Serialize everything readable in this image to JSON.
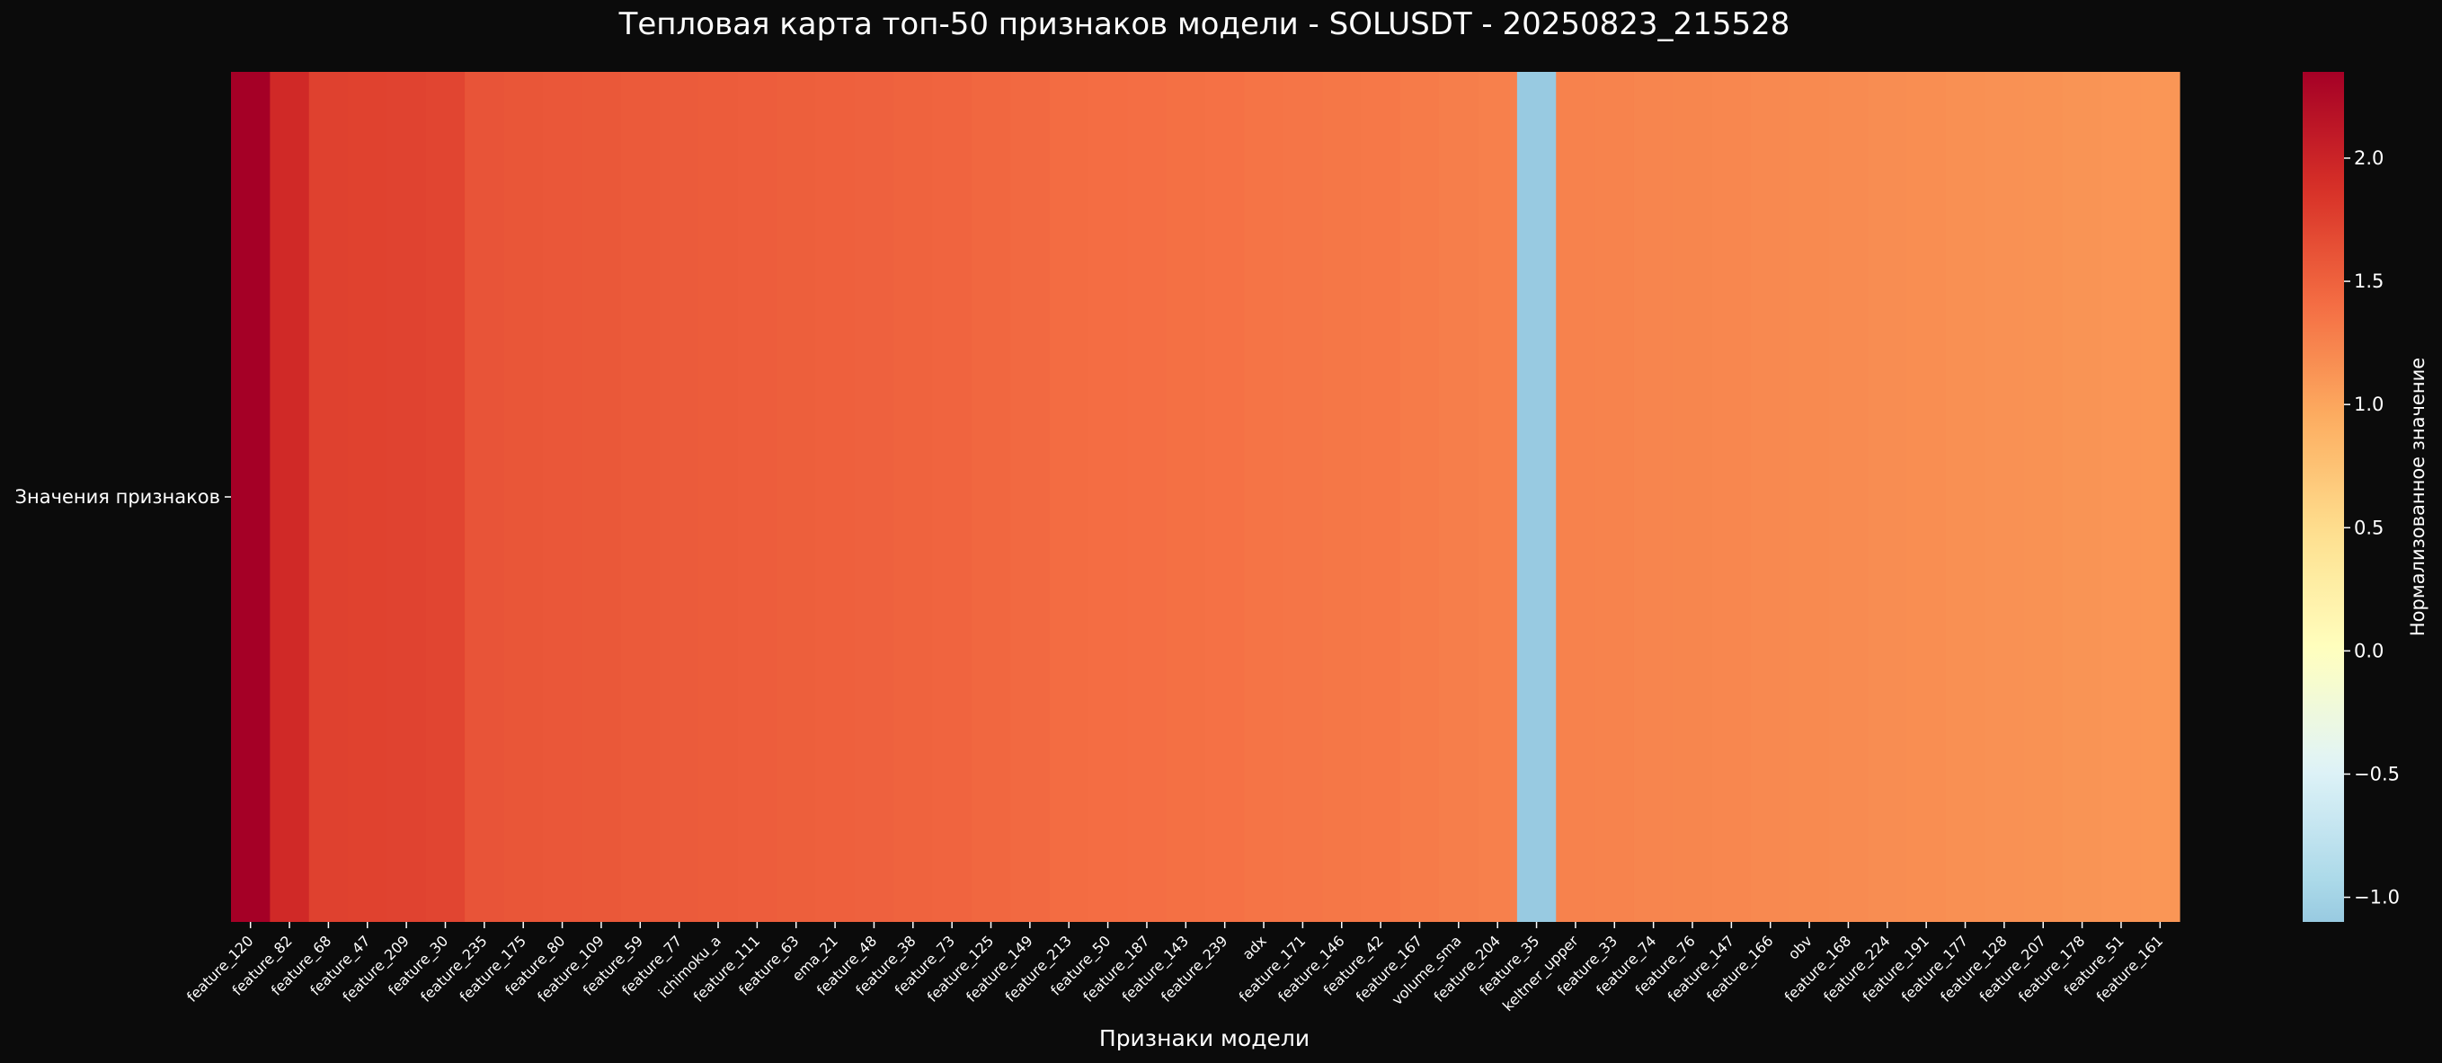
{
  "chart_data": {
    "type": "heatmap",
    "title": "Тепловая карта топ-50 признаков модели - SOLUSDT - 20250823_215528",
    "xlabel": "Признаки модели",
    "row_labels": [
      "Значения признаков"
    ],
    "colorbar_label": "Нормализованное значение",
    "colorbar_range": [
      -1.1,
      2.35
    ],
    "colorbar_ticks": [
      {
        "value": 2.0,
        "label": "2.0"
      },
      {
        "value": 1.5,
        "label": "1.5"
      },
      {
        "value": 1.0,
        "label": "1.0"
      },
      {
        "value": 0.5,
        "label": "0.5"
      },
      {
        "value": 0.0,
        "label": "0.0"
      },
      {
        "value": -0.5,
        "label": "−0.5"
      },
      {
        "value": -1.0,
        "label": "−1.0"
      }
    ],
    "colormap": "RdYlBu_r",
    "columns": [
      {
        "name": "feature_120",
        "value": 2.35
      },
      {
        "name": "feature_82",
        "value": 1.95
      },
      {
        "name": "feature_68",
        "value": 1.75
      },
      {
        "name": "feature_47",
        "value": 1.74
      },
      {
        "name": "feature_209",
        "value": 1.73
      },
      {
        "name": "feature_30",
        "value": 1.72
      },
      {
        "name": "feature_235",
        "value": 1.6
      },
      {
        "name": "feature_175",
        "value": 1.59
      },
      {
        "name": "feature_80",
        "value": 1.58
      },
      {
        "name": "feature_109",
        "value": 1.57
      },
      {
        "name": "feature_59",
        "value": 1.56
      },
      {
        "name": "feature_77",
        "value": 1.55
      },
      {
        "name": "ichimoku_a",
        "value": 1.54
      },
      {
        "name": "feature_111",
        "value": 1.53
      },
      {
        "name": "feature_63",
        "value": 1.52
      },
      {
        "name": "ema_21",
        "value": 1.51
      },
      {
        "name": "feature_48",
        "value": 1.5
      },
      {
        "name": "feature_38",
        "value": 1.49
      },
      {
        "name": "feature_73",
        "value": 1.48
      },
      {
        "name": "feature_125",
        "value": 1.46
      },
      {
        "name": "feature_149",
        "value": 1.44
      },
      {
        "name": "feature_213",
        "value": 1.42
      },
      {
        "name": "feature_50",
        "value": 1.41
      },
      {
        "name": "feature_187",
        "value": 1.4
      },
      {
        "name": "feature_143",
        "value": 1.39
      },
      {
        "name": "feature_239",
        "value": 1.38
      },
      {
        "name": "adx",
        "value": 1.36
      },
      {
        "name": "feature_171",
        "value": 1.35
      },
      {
        "name": "feature_146",
        "value": 1.34
      },
      {
        "name": "feature_42",
        "value": 1.33
      },
      {
        "name": "feature_167",
        "value": 1.31
      },
      {
        "name": "volume_sma",
        "value": 1.29
      },
      {
        "name": "feature_204",
        "value": 1.27
      },
      {
        "name": "feature_35",
        "value": -1.1
      },
      {
        "name": "keltner_upper",
        "value": 1.26
      },
      {
        "name": "feature_33",
        "value": 1.25
      },
      {
        "name": "feature_74",
        "value": 1.24
      },
      {
        "name": "feature_76",
        "value": 1.23
      },
      {
        "name": "feature_147",
        "value": 1.22
      },
      {
        "name": "feature_166",
        "value": 1.21
      },
      {
        "name": "obv",
        "value": 1.2
      },
      {
        "name": "feature_168",
        "value": 1.19
      },
      {
        "name": "feature_224",
        "value": 1.18
      },
      {
        "name": "feature_191",
        "value": 1.17
      },
      {
        "name": "feature_177",
        "value": 1.16
      },
      {
        "name": "feature_128",
        "value": 1.15
      },
      {
        "name": "feature_207",
        "value": 1.14
      },
      {
        "name": "feature_178",
        "value": 1.13
      },
      {
        "name": "feature_51",
        "value": 1.12
      },
      {
        "name": "feature_161",
        "value": 1.11
      }
    ]
  }
}
